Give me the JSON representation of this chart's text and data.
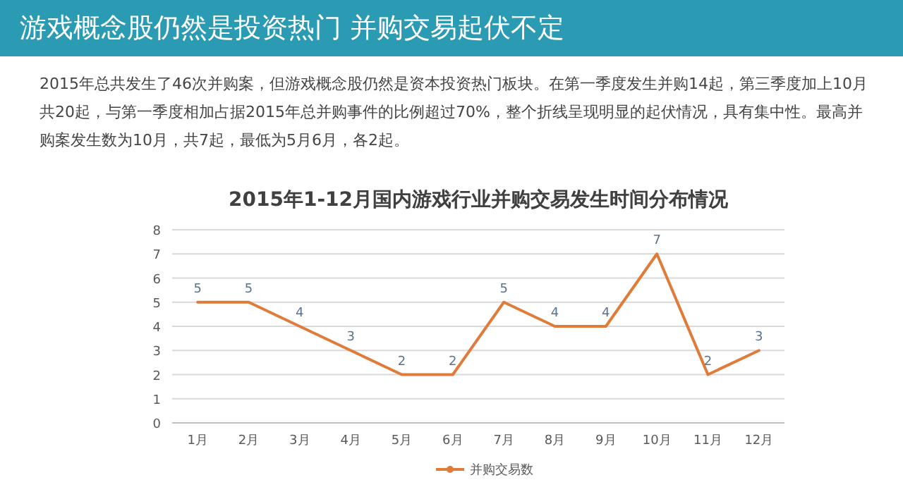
{
  "chart_data": {
    "type": "line",
    "title": "2015年1-12月国内游戏行业并购交易发生时间分布情况",
    "annotations": [
      "游戏概念股仍然是投资热门 并购交易起伏不定",
      "2015年总共发生了46次并购案，但游戏概念股仍然是资本投资热门板块。在第一季度发生并购14起，第三季度加上10月共20起，与第一季度相加占据2015年总并购事件的比例超过70%，整个折线呈现明显的起伏情况，具有集中性。最高并购案发生数为10月，共7起，最低为5月6月，各2起。"
    ],
    "categories": [
      "1月",
      "2月",
      "3月",
      "4月",
      "5月",
      "6月",
      "7月",
      "8月",
      "9月",
      "10月",
      "11月",
      "12月"
    ],
    "series": [
      {
        "name": "并购交易数",
        "color": "#e07b39",
        "values": [
          5,
          5,
          4,
          3,
          2,
          2,
          5,
          4,
          4,
          7,
          2,
          3
        ]
      }
    ],
    "ylim": [
      0,
      8
    ],
    "yticks": [
      0,
      1,
      2,
      3,
      4,
      5,
      6,
      7,
      8
    ],
    "grid": "y",
    "legend": "bottom",
    "data_labels": true,
    "marker": "none"
  }
}
